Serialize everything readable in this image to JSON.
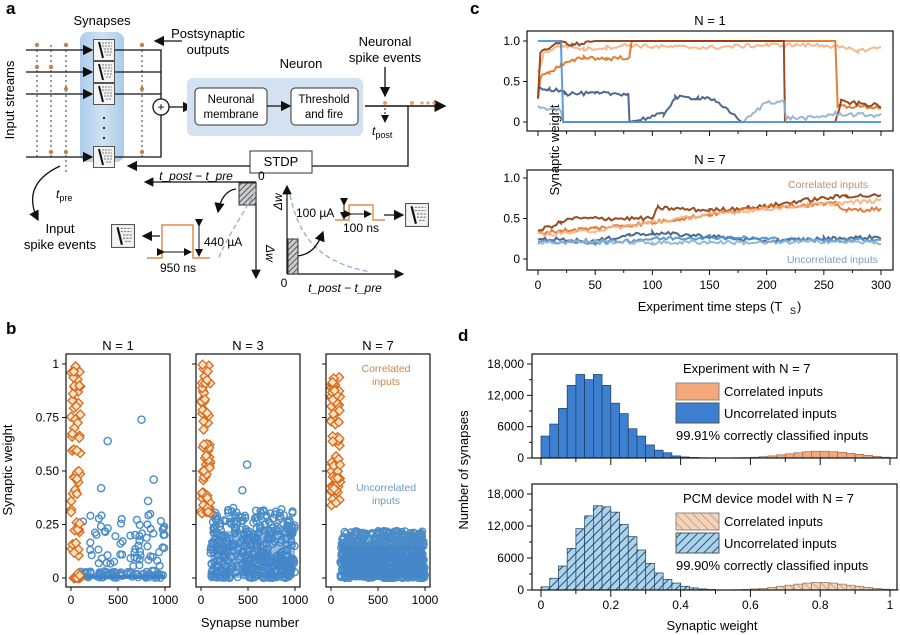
{
  "panel_labels": {
    "a": "a",
    "b": "b",
    "c": "c",
    "d": "d"
  },
  "diagram_a": {
    "synapses_label": "Synapses",
    "postsynaptic_label_1": "Postsynaptic",
    "postsynaptic_label_2": "outputs",
    "neuron_label": "Neuron",
    "membrane_label_1": "Neuronal",
    "membrane_label_2": "membrane",
    "threshold_label_1": "Threshold",
    "threshold_label_2": "and fire",
    "spike_events_label_1": "Neuronal",
    "spike_events_label_2": "spike events",
    "t_post": "t",
    "t_post_sub": "post",
    "t_pre": "t",
    "t_pre_sub": "pre",
    "input_streams_label": "Input streams",
    "input_spike_label_1": "Input",
    "input_spike_label_2": "spike events",
    "stdp_label": "STDP",
    "plus_symbol": "+",
    "dt_axis_label": "t_post − t_pre",
    "zero_label": "0",
    "dw_label": "Δw",
    "depression_amplitude": "440 µA",
    "depression_duration": "950 ns",
    "potentiation_amplitude": "100 µA",
    "potentiation_duration": "100 ns"
  },
  "chart_data": [
    {
      "id": "b",
      "type": "scatter",
      "ylabel": "Synaptic weight",
      "xlabel": "Synapse number",
      "ylim": [
        0,
        1
      ],
      "yticks": [
        "0",
        "0.25",
        "0.50",
        "0.75",
        "1"
      ],
      "xticks": [
        "0",
        "500",
        "1000"
      ],
      "xlim": [
        0,
        1000
      ],
      "subplots": [
        {
          "title": "N = 1",
          "correlated_range": [
            0,
            100
          ],
          "correlated_weights_desc": "spread 0–1",
          "uncorrelated_weights_desc": "mostly 0–0.3, outliers 0.37–0.74",
          "uncorrelated_outliers": [
            [
              750,
              0.74
            ],
            [
              390,
              0.64
            ],
            [
              880,
              0.46
            ],
            [
              320,
              0.42
            ],
            [
              820,
              0.36
            ]
          ]
        },
        {
          "title": "N = 3",
          "correlated_range": [
            0,
            100
          ],
          "correlated_weights_desc": "0.3–1",
          "uncorrelated_weights_desc": "dense 0–0.3, outliers up to 0.53",
          "uncorrelated_outliers": [
            [
              490,
              0.53
            ],
            [
              440,
              0.41
            ]
          ]
        },
        {
          "title": "N = 7",
          "correlated_range": [
            0,
            100
          ],
          "correlated_weights_desc": "0.33–0.94",
          "uncorrelated_weights_desc": "dense 0–0.2, max ~0.3",
          "annotations": [
            "Correlated inputs",
            "Uncorrelated inputs"
          ]
        }
      ],
      "legend": [
        "Correlated inputs (orange diamonds)",
        "Uncorrelated inputs (blue circles)"
      ]
    },
    {
      "id": "c",
      "type": "line",
      "ylabel": "Synaptic weight",
      "xlabel": "Experiment time steps (T_S)",
      "xlim": [
        0,
        300
      ],
      "xticks": [
        "0",
        "50",
        "100",
        "150",
        "200",
        "250",
        "300"
      ],
      "ylim": [
        0,
        1
      ],
      "yticks": [
        "0",
        "0.5",
        "1.0"
      ],
      "subplots": [
        {
          "title": "N = 1",
          "series": [
            {
              "name": "correlated-1",
              "color": "#f4b183",
              "x": [
                0,
                5,
                20,
                40,
                60,
                80,
                100,
                150,
                200,
                250,
                280,
                300
              ],
              "values": [
                0.6,
                0.85,
                0.95,
                0.9,
                0.92,
                0.95,
                0.93,
                0.92,
                0.95,
                0.95,
                0.88,
                0.92
              ]
            },
            {
              "name": "correlated-2",
              "color": "#e07020",
              "x": [
                0,
                2,
                10,
                20,
                40,
                60,
                80,
                82,
                260,
                262,
                300
              ],
              "values": [
                0.3,
                0.55,
                0.62,
                0.7,
                0.8,
                0.78,
                0.8,
                1.0,
                1.0,
                0.2,
                0.18
              ]
            },
            {
              "name": "correlated-3",
              "color": "#8b3a0e",
              "x": [
                0,
                2,
                10,
                20,
                30,
                50,
                80,
                100,
                215,
                216,
                258,
                260,
                265,
                300
              ],
              "values": [
                0.3,
                0.85,
                0.9,
                1.0,
                0.95,
                1.0,
                1.0,
                1.0,
                1.0,
                0.0,
                0.0,
                0.0,
                0.25,
                0.2
              ]
            },
            {
              "name": "uncorrelated-1",
              "color": "#3a5a80",
              "x": [
                0,
                10,
                22,
                24,
                50,
                79,
                80,
                110,
                120,
                140,
                150,
                180
              ],
              "values": [
                0.4,
                0.4,
                0.4,
                0.35,
                0.35,
                0.35,
                0.0,
                0.1,
                0.3,
                0.3,
                0.3,
                0.0
              ]
            },
            {
              "name": "uncorrelated-2",
              "color": "#8fb0cf",
              "x": [
                0,
                20,
                22,
                180,
                200,
                215,
                217,
                240,
                260,
                300
              ],
              "values": [
                0.18,
                0.15,
                0.0,
                0.0,
                0.25,
                0.25,
                0.05,
                0.05,
                0.1,
                0.08
              ]
            },
            {
              "name": "uncorrelated-3",
              "color": "#4a90d0",
              "x": [
                0,
                20,
                22,
                300
              ],
              "values": [
                1.0,
                1.0,
                0.0,
                0.0
              ]
            }
          ]
        },
        {
          "title": "N = 7",
          "annotations": [
            "Correlated inputs",
            "Uncorrelated inputs"
          ],
          "series": [
            {
              "name": "correlated-1",
              "color": "#8b3a0e",
              "x": [
                0,
                20,
                30,
                60,
                100,
                105,
                150,
                200,
                230,
                270,
                300
              ],
              "values": [
                0.35,
                0.45,
                0.5,
                0.5,
                0.5,
                0.63,
                0.6,
                0.65,
                0.72,
                0.78,
                0.78
              ]
            },
            {
              "name": "correlated-2",
              "color": "#e07020",
              "x": [
                0,
                20,
                50,
                80,
                100,
                150,
                200,
                260,
                270,
                300
              ],
              "values": [
                0.32,
                0.35,
                0.38,
                0.42,
                0.45,
                0.55,
                0.65,
                0.68,
                0.6,
                0.62
              ]
            },
            {
              "name": "correlated-3",
              "color": "#f4b183",
              "x": [
                0,
                50,
                100,
                150,
                200,
                250,
                300
              ],
              "values": [
                0.3,
                0.35,
                0.45,
                0.55,
                0.62,
                0.68,
                0.72
              ]
            },
            {
              "name": "uncorrelated-1",
              "color": "#3a5a80",
              "x": [
                0,
                50,
                80,
                100,
                150,
                200,
                250,
                300
              ],
              "values": [
                0.25,
                0.22,
                0.3,
                0.32,
                0.28,
                0.22,
                0.25,
                0.27
              ]
            },
            {
              "name": "uncorrelated-2",
              "color": "#4a90d0",
              "x": [
                0,
                50,
                100,
                150,
                200,
                250,
                300
              ],
              "values": [
                0.22,
                0.2,
                0.25,
                0.27,
                0.25,
                0.23,
                0.24
              ]
            },
            {
              "name": "uncorrelated-3",
              "color": "#8fb0cf",
              "x": [
                0,
                50,
                100,
                150,
                200,
                250,
                300
              ],
              "values": [
                0.2,
                0.22,
                0.2,
                0.21,
                0.2,
                0.22,
                0.2
              ]
            }
          ]
        }
      ]
    },
    {
      "id": "d",
      "type": "bar",
      "ylabel": "Number of synapses",
      "xlabel": "Synaptic weight",
      "xlim": [
        0,
        1
      ],
      "xticks": [
        "0",
        "0.2",
        "0.4",
        "0.6",
        "0.8",
        "1"
      ],
      "ylim": [
        0,
        18000
      ],
      "yticks": [
        "0",
        "6000",
        "12,000",
        "18,000"
      ],
      "bin_width": 0.025,
      "subplots": [
        {
          "legend_title": "Experiment with N = 7",
          "legend": [
            "Correlated inputs",
            "Uncorrelated inputs"
          ],
          "annotation": "99.91% correctly classified inputs",
          "hatched": false,
          "uncorrelated": {
            "color": "#3d7fd0",
            "bins_start": 0.0,
            "values": [
              4200,
              6500,
              9500,
              13900,
              16000,
              15000,
              16000,
              13900,
              10500,
              8500,
              5600,
              4200,
              2500,
              1500,
              1000,
              400,
              200,
              100,
              50,
              30,
              20,
              10
            ]
          },
          "correlated": {
            "color": "#f4a97a",
            "bins_start": 0.55,
            "values": [
              50,
              80,
              150,
              250,
              400,
              600,
              800,
              1000,
              1200,
              1300,
              1300,
              1200,
              1100,
              900,
              700,
              500,
              300,
              150
            ]
          }
        },
        {
          "legend_title": "PCM device model with N = 7",
          "legend": [
            "Correlated inputs",
            "Uncorrelated inputs"
          ],
          "annotation": "99.90% correctly classified inputs",
          "hatched": true,
          "uncorrelated": {
            "color": "#a9d4ec",
            "bins_start": 0.0,
            "values": [
              600,
              2200,
              4500,
              7800,
              11500,
              13900,
              15800,
              15600,
              14600,
              12300,
              10000,
              7500,
              5000,
              3200,
              2000,
              1300,
              700,
              400,
              200,
              100
            ]
          },
          "correlated": {
            "color": "#f5d3b8",
            "bins_start": 0.55,
            "values": [
              50,
              100,
              200,
              300,
              500,
              700,
              900,
              1100,
              1300,
              1400,
              1400,
              1300,
              1100,
              900,
              700,
              500,
              300,
              150,
              80
            ]
          }
        }
      ]
    }
  ]
}
